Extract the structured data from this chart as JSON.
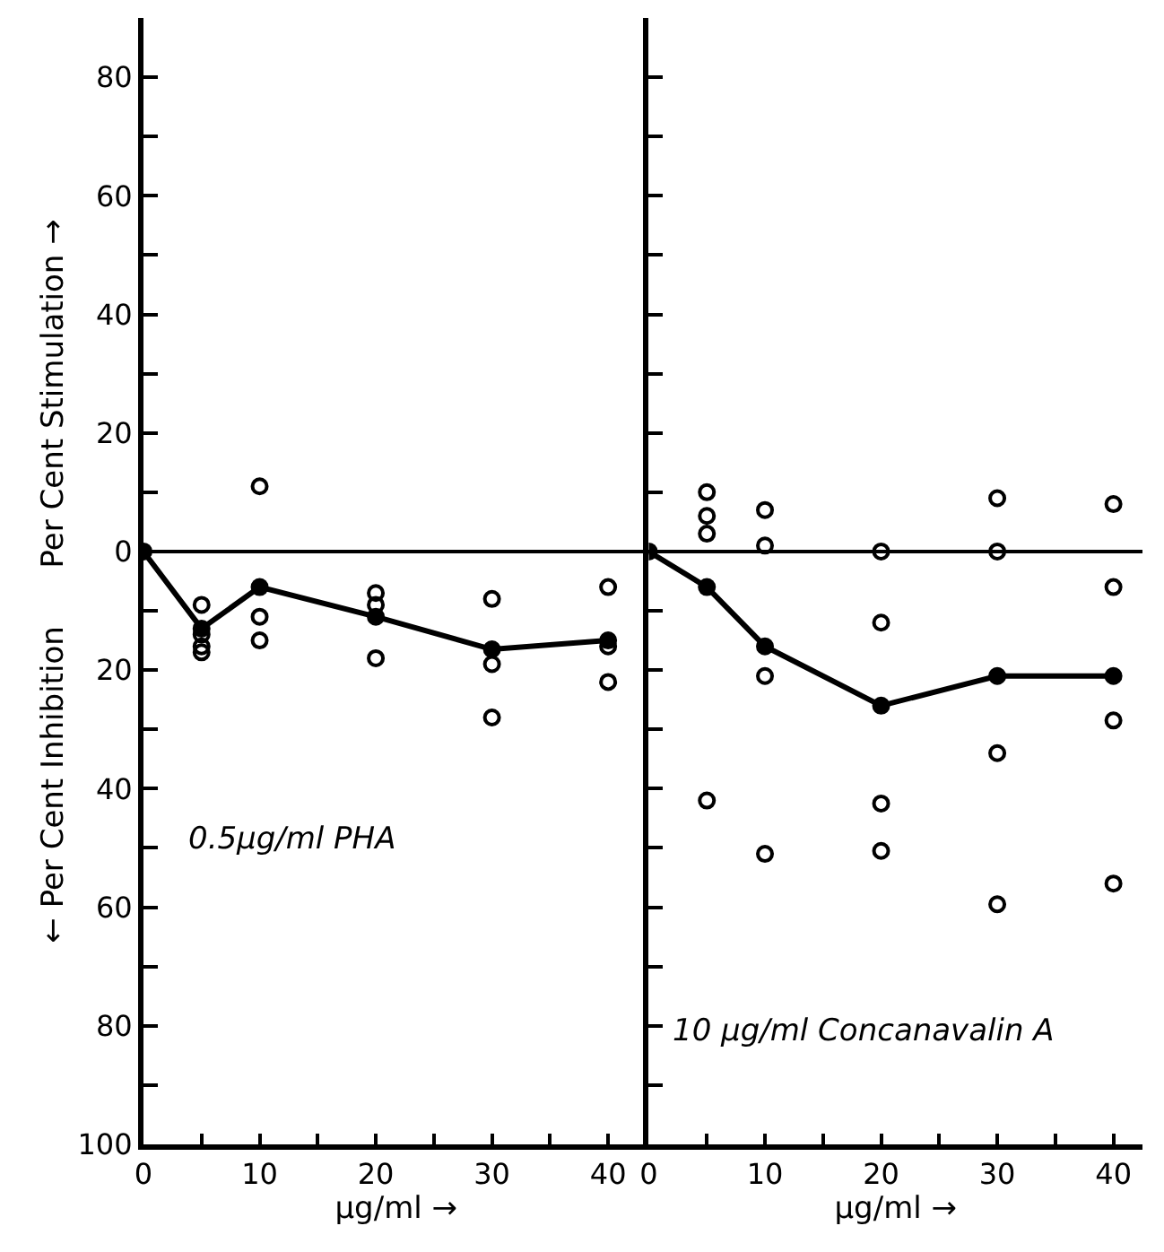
{
  "chart_data": [
    {
      "type": "line",
      "ylabel": "← Per Cent Inhibition      Per Cent Stimulation →",
      "xlabel": "μg/ml →",
      "marker": "circle",
      "annotations": [
        "0.5μg/ml PHA"
      ],
      "xlim": [
        0,
        43.5
      ],
      "xticks": [
        0,
        {
          "value": 5,
          "label": null
        },
        10,
        {
          "value": 15,
          "label": null
        },
        20,
        {
          "value": 25,
          "label": null
        },
        30,
        {
          "value": 35,
          "label": null
        },
        40
      ],
      "ylim": [
        -100,
        90
      ],
      "yticks": [
        {
          "value": -100,
          "label": "100"
        },
        {
          "value": -90,
          "label": null
        },
        {
          "value": -80,
          "label": "80"
        },
        {
          "value": -70,
          "label": null
        },
        {
          "value": -60,
          "label": "60"
        },
        {
          "value": -50,
          "label": null
        },
        {
          "value": -40,
          "label": "40"
        },
        {
          "value": -30,
          "label": null
        },
        {
          "value": -20,
          "label": "20"
        },
        {
          "value": -10,
          "label": null
        },
        0,
        {
          "value": 10,
          "label": null
        },
        20,
        {
          "value": 30,
          "label": null
        },
        40,
        {
          "value": 50,
          "label": null
        },
        60,
        {
          "value": 70,
          "label": null
        },
        80
      ],
      "ref_lines": [
        {
          "axis": "y",
          "value": 0,
          "color": "#000000"
        }
      ],
      "series": [
        {
          "color": "#000000",
          "x": [
            0,
            5,
            10,
            20,
            30,
            40
          ],
          "values": [
            0,
            -13,
            -6,
            -11,
            -16.5,
            -15
          ]
        },
        {
          "type": "scatter",
          "color": "#000000",
          "x": [
            5,
            5,
            5,
            5,
            10,
            10,
            10,
            20,
            20,
            20,
            30,
            30,
            30,
            40,
            40,
            40
          ],
          "values": [
            -9,
            -14,
            -16,
            -17,
            11,
            -11,
            -15,
            -7,
            -9,
            -18,
            -8,
            -19,
            -28,
            -6,
            -16,
            -22
          ]
        }
      ]
    },
    {
      "type": "line",
      "xlabel": "μg/ml →",
      "marker": "circle",
      "tick_labels": "x",
      "annotations": [
        "10 μg/ml Concanavalin A"
      ],
      "xlim": [
        0,
        42.5
      ],
      "xticks": [
        0,
        {
          "value": 5,
          "label": null
        },
        10,
        {
          "value": 15,
          "label": null
        },
        20,
        {
          "value": 25,
          "label": null
        },
        30,
        {
          "value": 35,
          "label": null
        },
        40
      ],
      "ylim": [
        -100,
        90
      ],
      "yticks": [
        {
          "value": -100,
          "label": null
        },
        {
          "value": -90,
          "label": null
        },
        {
          "value": -80,
          "label": null
        },
        {
          "value": -70,
          "label": null
        },
        {
          "value": -60,
          "label": null
        },
        {
          "value": -50,
          "label": null
        },
        {
          "value": -40,
          "label": null
        },
        {
          "value": -30,
          "label": null
        },
        {
          "value": -20,
          "label": null
        },
        {
          "value": -10,
          "label": null
        },
        {
          "value": 0,
          "label": null
        },
        {
          "value": 10,
          "label": null
        },
        {
          "value": 20,
          "label": null
        },
        {
          "value": 30,
          "label": null
        },
        {
          "value": 40,
          "label": null
        },
        {
          "value": 50,
          "label": null
        },
        {
          "value": 60,
          "label": null
        },
        {
          "value": 70,
          "label": null
        },
        {
          "value": 80,
          "label": null
        }
      ],
      "ref_lines": [
        {
          "axis": "y",
          "value": 0,
          "color": "#000000"
        }
      ],
      "series": [
        {
          "color": "#000000",
          "x": [
            0,
            5,
            10,
            20,
            30,
            40
          ],
          "values": [
            0,
            -6,
            -16,
            -26,
            -21,
            -21
          ]
        },
        {
          "type": "scatter",
          "color": "#000000",
          "x": [
            5,
            5,
            5,
            5,
            10,
            10,
            10,
            10,
            20,
            20,
            20,
            20,
            30,
            30,
            30,
            30,
            40,
            40,
            40,
            40
          ],
          "values": [
            10,
            6,
            3,
            -42,
            7,
            1,
            -21,
            -51,
            0,
            -12,
            -42.5,
            -50.5,
            9,
            0,
            -34,
            -59.5,
            8,
            -6,
            -28.5,
            -56
          ]
        }
      ]
    }
  ]
}
